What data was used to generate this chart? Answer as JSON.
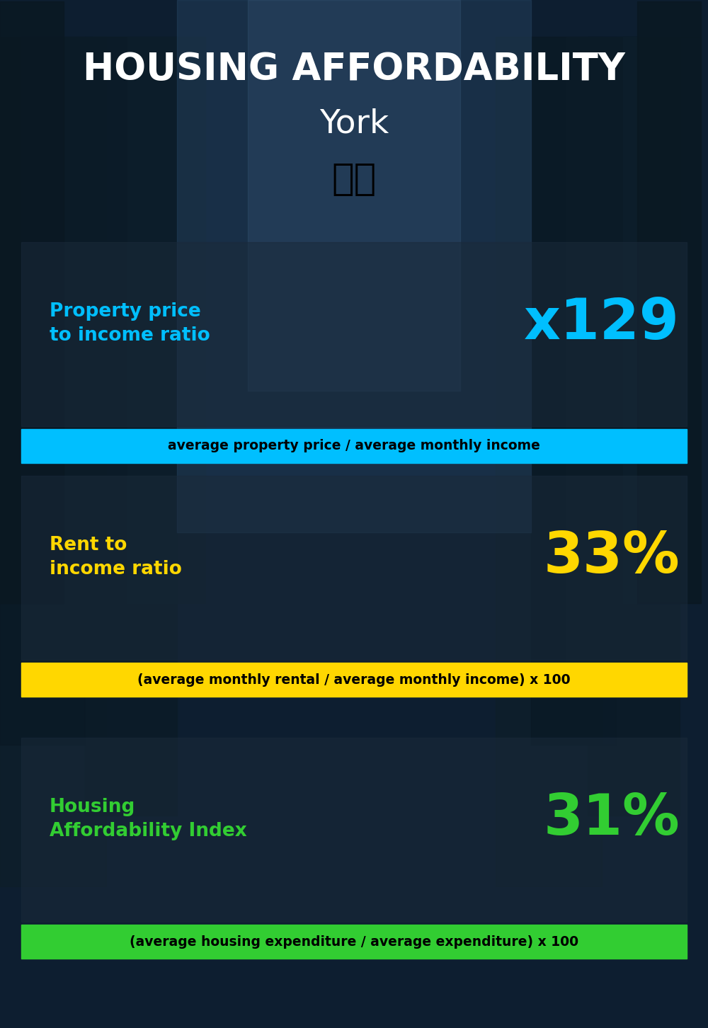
{
  "title_line1": "HOUSING AFFORDABILITY",
  "title_line2": "York",
  "flag_emoji": "🇬🇧",
  "section1_label": "Property price\nto income ratio",
  "section1_value": "x129",
  "section1_formula": "average property price / average monthly income",
  "section1_label_color": "#00BFFF",
  "section1_value_color": "#00BFFF",
  "section1_formula_bg": "#00BFFF",
  "section1_formula_color": "#000000",
  "section2_label": "Rent to\nincome ratio",
  "section2_value": "33%",
  "section2_formula": "(average monthly rental / average monthly income) x 100",
  "section2_label_color": "#FFD700",
  "section2_value_color": "#FFD700",
  "section2_formula_bg": "#FFD700",
  "section2_formula_color": "#000000",
  "section3_label": "Housing\nAffordability Index",
  "section3_value": "31%",
  "section3_formula": "(average housing expenditure / average expenditure) x 100",
  "section3_label_color": "#32CD32",
  "section3_value_color": "#32CD32",
  "section3_formula_bg": "#32CD32",
  "section3_formula_color": "#000000",
  "bg_color": "#0a1628",
  "title_color": "#FFFFFF",
  "subtitle_color": "#FFFFFF",
  "panel_color": "#1a2a3a",
  "panel_alpha": 0.55
}
